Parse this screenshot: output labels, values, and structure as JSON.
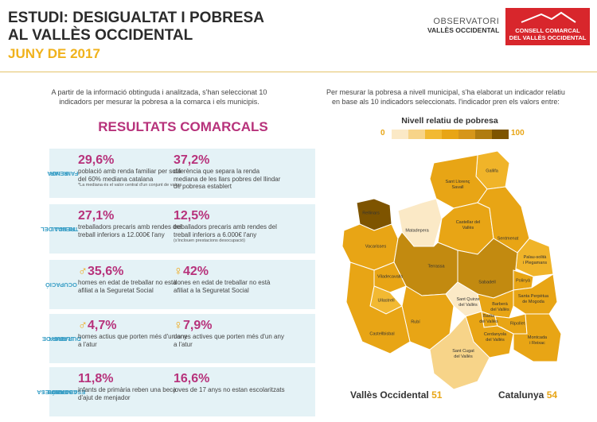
{
  "header": {
    "title_lines": [
      "ESTUDI: DESIGUALTAT I POBRESA",
      "AL VALLÈS OCCIDENTAL"
    ],
    "date": "JUNY DE 2017"
  },
  "logos": {
    "observatori": [
      "OBSERVATORI",
      "VALLÈS OCCIDENTAL"
    ],
    "consell": [
      "CONSELL COMARCAL",
      "DEL VALLÈS OCCIDENTAL"
    ]
  },
  "intro_left": "A partir de la informació obtinguda i analitzada, s'han seleccionat 10 indicadors per mesurar la pobresa a la comarca i els municipis.",
  "intro_right": "Per mesurar la pobresa a nivell municipal, s'ha elaborat un indicador relatiu en base als 10 indicadors seleccionats. l'indicador pren els valors entre:",
  "results": {
    "title": "RESULTATS COMARCALS",
    "rows": [
      {
        "label_lines": [
          "RENDA",
          "FAMILIAR"
        ],
        "stats": [
          {
            "value": "29,6%",
            "text": "població amb renda familiar per sota del 60% mediana catalana",
            "note": "*La mediana és el valor central d'un conjunt de valors"
          },
          {
            "value": "37,2%",
            "text": "diferència que separa la renda mediana de les llars pobres del llindar de pobresa establert"
          }
        ]
      },
      {
        "label_lines": [
          "RENDA DEL",
          "TREBALL"
        ],
        "stats": [
          {
            "value": "27,1%",
            "text": "treballadors precaris amb rendes del treball inferiors a 12.000€ l'any"
          },
          {
            "value": "12,5%",
            "text": "treballadors precaris amb rendes del treball inferiors a 6.000€ l'any",
            "note": "(s'inclouen prestacions desocupació)"
          }
        ]
      },
      {
        "label_lines": [
          "OCUPACIÓ"
        ],
        "stats": [
          {
            "value": "35,6%",
            "text": "homes en edat de treballar no està afiliat a la Seguretat Social"
          },
          {
            "value": "42%",
            "text": "dones en edat de treballar no està afiliat a la Seguretat Social"
          }
        ]
      },
      {
        "label_lines": [
          "ATUR DE",
          "LLARGA",
          "DURADA"
        ],
        "stats": [
          {
            "value": "4,7%",
            "text": "homes actius que porten més d'un any a l'atur"
          },
          {
            "value": "7,9%",
            "text": "dones actives que porten més d'un any a l'atur"
          }
        ]
      },
      {
        "label_lines": [
          "POBRESA",
          "INFANTIL I",
          "ABANDÓ",
          "ESCOLAR"
        ],
        "stats": [
          {
            "value": "11,8%",
            "text": "infants de primària reben una beca d'ajut de menjador"
          },
          {
            "value": "16,6%",
            "text": "joves de 17 anys no estan escolaritzats"
          }
        ]
      }
    ]
  },
  "legend": {
    "title": "Nivell relatiu de pobresa",
    "min": "0",
    "max": "100"
  },
  "map": {
    "municipalities": [
      {
        "lines": [
          "Gallifa"
        ]
      },
      {
        "lines": [
          "Sant Llorenç",
          "Savall"
        ]
      },
      {
        "lines": [
          "Rellinars"
        ]
      },
      {
        "lines": [
          "Matadepera"
        ]
      },
      {
        "lines": [
          "Castellar del",
          "Vallès"
        ]
      },
      {
        "lines": [
          "Sentmenat"
        ]
      },
      {
        "lines": [
          "Vacarisses"
        ]
      },
      {
        "lines": [
          "Terrassa"
        ]
      },
      {
        "lines": [
          "Palau-solità",
          "i Plegamans"
        ]
      },
      {
        "lines": [
          "Viladecavalls"
        ]
      },
      {
        "lines": [
          "Sabadell"
        ]
      },
      {
        "lines": [
          "Polinyà"
        ]
      },
      {
        "lines": [
          "Santa Perpètua",
          "de Mogoda"
        ]
      },
      {
        "lines": [
          "Ullastrell"
        ]
      },
      {
        "lines": [
          "Sant Quirze",
          "del Vallès"
        ]
      },
      {
        "lines": [
          "Barberà",
          "del Vallès"
        ]
      },
      {
        "lines": [
          "Badia",
          "del Vallès"
        ]
      },
      {
        "lines": [
          "Ripollet"
        ]
      },
      {
        "lines": [
          "Rubí"
        ]
      },
      {
        "lines": [
          "Cerdanyola",
          "del Vallès"
        ]
      },
      {
        "lines": [
          "Montcada",
          "i Reixac"
        ]
      },
      {
        "lines": [
          "Castellbisbal"
        ]
      },
      {
        "lines": [
          "Sant Cugat",
          "del Vallès"
        ]
      }
    ]
  },
  "footer": [
    {
      "name": "Vallès Occidental",
      "value": 51
    },
    {
      "name": "Catalunya",
      "value": 54
    }
  ]
}
